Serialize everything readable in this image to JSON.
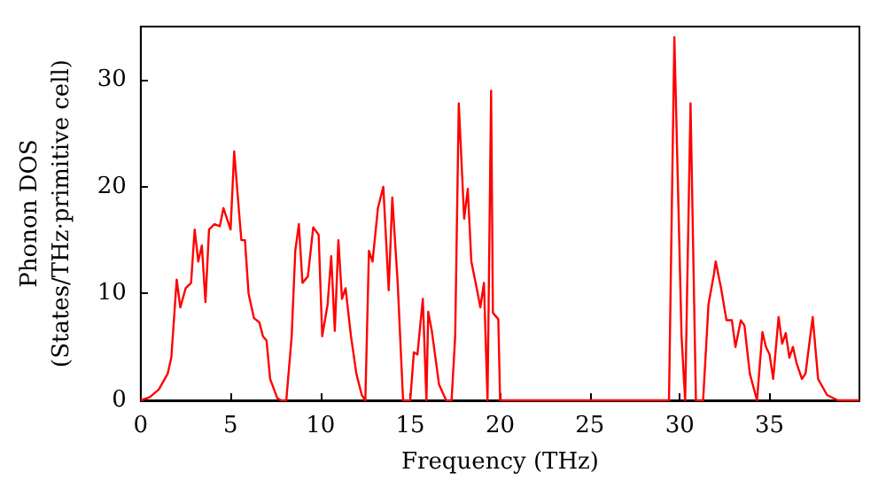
{
  "chart_data": {
    "type": "line",
    "xlabel": "Frequency (THz)",
    "ylabel": "Phonon DOS\n(States/THz·primitive cell)",
    "x": [
      0,
      0.5,
      1,
      1.5,
      1.7,
      2.0,
      2.2,
      2.5,
      2.8,
      3.0,
      3.2,
      3.4,
      3.6,
      3.8,
      4.1,
      4.4,
      4.6,
      5.0,
      5.2,
      5.5,
      5.6,
      5.8,
      6.0,
      6.3,
      6.6,
      6.8,
      7.0,
      7.2,
      7.6,
      7.8,
      8.1,
      8.4,
      8.6,
      8.8,
      9.0,
      9.3,
      9.6,
      9.9,
      10.1,
      10.4,
      10.6,
      10.8,
      11.0,
      11.2,
      11.4,
      11.7,
      12.0,
      12.3,
      12.5,
      12.7,
      12.9,
      13.2,
      13.5,
      13.8,
      14.0,
      14.3,
      14.6,
      15.0,
      15.2,
      15.4,
      15.7,
      15.9,
      16.0,
      16.2,
      16.6,
      17.0,
      17.3,
      17.5,
      17.7,
      18.0,
      18.2,
      18.4,
      18.7,
      18.9,
      19.1,
      19.3,
      19.5,
      19.6,
      19.9,
      20.0,
      29.4,
      29.7,
      30.1,
      30.3,
      30.6,
      30.9,
      31.3,
      31.6,
      31.9,
      32.0,
      32.3,
      32.6,
      32.9,
      33.1,
      33.4,
      33.6,
      33.9,
      34.3,
      34.6,
      34.8,
      35.0,
      35.2,
      35.5,
      35.7,
      35.9,
      36.1,
      36.3,
      36.5,
      36.8,
      37.0,
      37.4,
      37.7,
      38.2,
      38.8,
      40
    ],
    "series": [
      {
        "color": "#ff0000",
        "values": [
          0,
          0.3,
          1,
          2.5,
          4,
          11.3,
          8.7,
          10.5,
          11,
          16,
          13,
          14.5,
          9.2,
          16,
          16.5,
          16.3,
          18,
          16,
          23.3,
          17,
          15,
          15,
          10,
          7.7,
          7.3,
          6,
          5.6,
          2,
          0.2,
          0,
          0,
          6,
          14,
          16.5,
          11,
          11.6,
          16.2,
          15.5,
          6,
          9,
          13.5,
          6.5,
          15,
          9.5,
          10.5,
          6,
          2.5,
          0.5,
          0,
          14,
          13,
          18,
          20,
          10.3,
          19,
          11,
          0,
          0,
          4.5,
          4.3,
          9.5,
          0,
          8.3,
          6.5,
          1.5,
          0,
          0,
          6,
          27.8,
          17,
          19.8,
          13,
          10.5,
          8.7,
          11,
          0,
          29,
          8.2,
          7.6,
          0,
          0,
          34,
          6,
          0,
          27.8,
          0,
          0,
          9,
          11.8,
          13,
          10.5,
          7.5,
          7.5,
          5,
          7.5,
          7,
          2.5,
          0,
          6.4,
          5,
          4.3,
          2,
          7.8,
          5.3,
          6.3,
          4,
          5,
          3.5,
          2,
          2.5,
          7.8,
          2,
          0.5,
          0,
          0
        ]
      }
    ],
    "xlim": [
      0,
      40
    ],
    "xticks": [
      0,
      5,
      10,
      15,
      20,
      25,
      30,
      35
    ],
    "ylim": [
      0,
      35
    ],
    "yticks": [
      0,
      10,
      20,
      30
    ],
    "marker": "none",
    "line_style": "solid"
  }
}
